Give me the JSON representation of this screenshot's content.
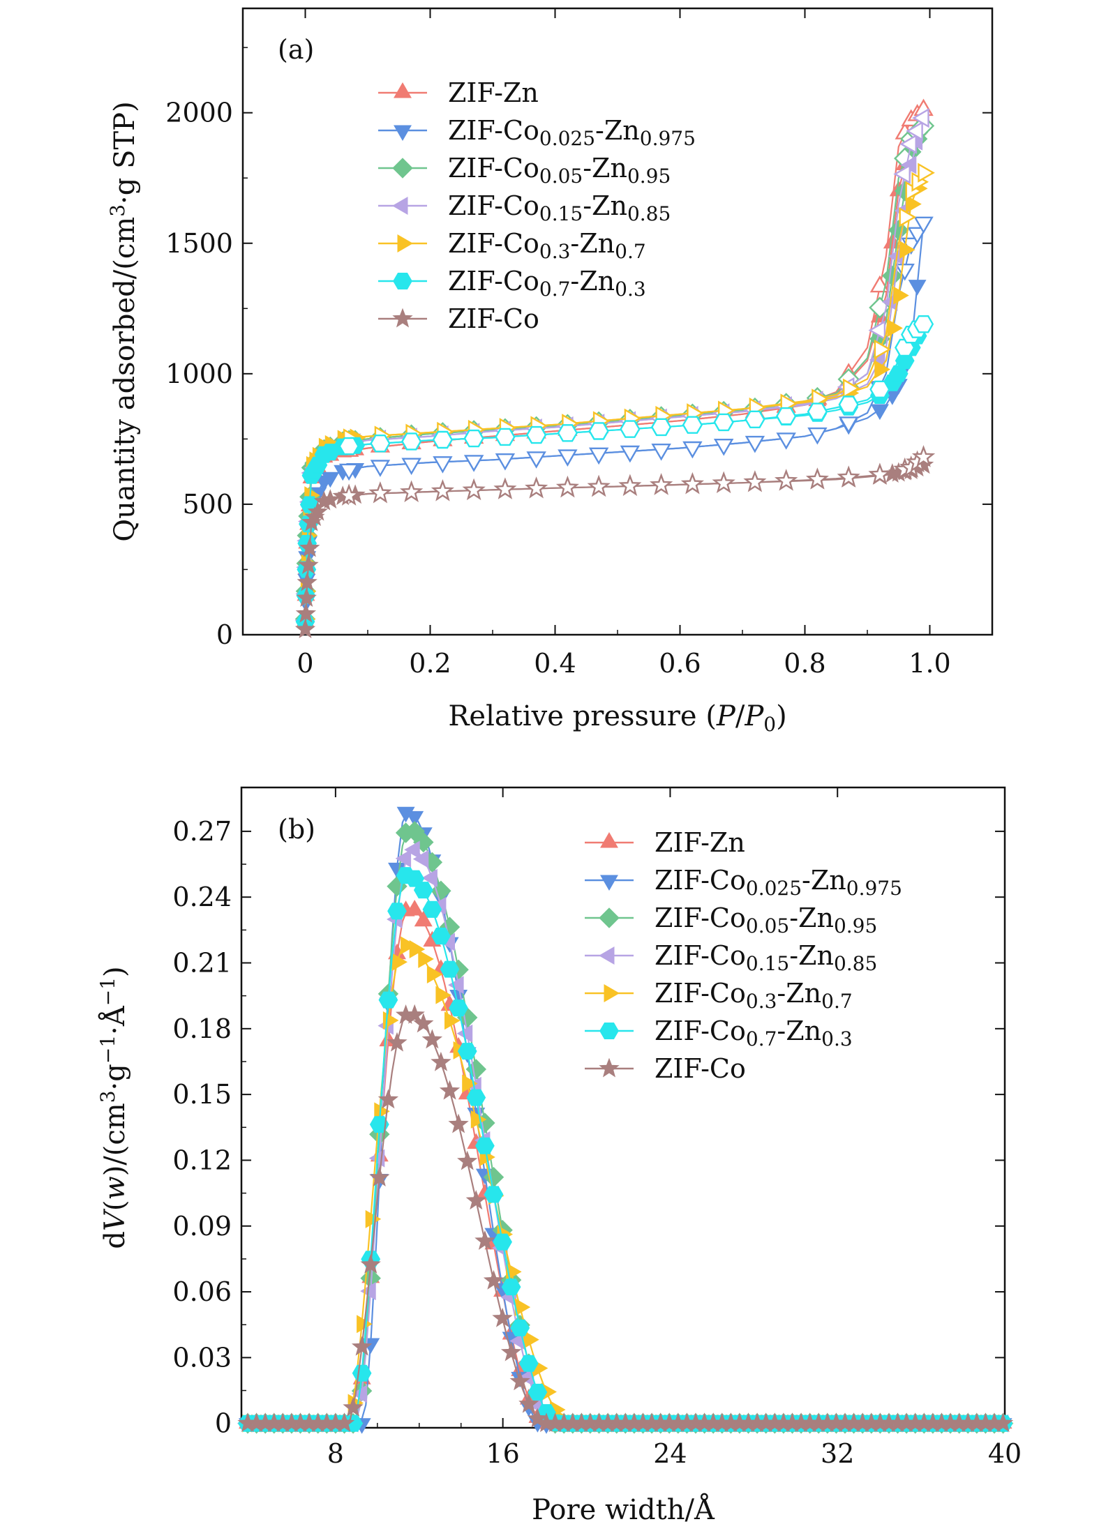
{
  "figure": {
    "panels": [
      "(a)",
      "(b)"
    ]
  },
  "series_names": [
    "ZIF-Zn",
    "ZIF-Co0.025-Zn0.975",
    "ZIF-Co0.05-Zn0.95",
    "ZIF-Co0.15-Zn0.85",
    "ZIF-Co0.3-Zn0.7",
    "ZIF-Co0.7-Zn0.3",
    "ZIF-Co"
  ],
  "series_legend": [
    {
      "base": "ZIF-Co",
      "s1": "",
      "mid": "",
      "s2": "",
      "plain": "ZIF-Zn"
    },
    {
      "base": "ZIF-Co",
      "s1": "0.025",
      "mid": "-Zn",
      "s2": "0.975",
      "plain": ""
    },
    {
      "base": "ZIF-Co",
      "s1": "0.05",
      "mid": "-Zn",
      "s2": "0.95",
      "plain": ""
    },
    {
      "base": "ZIF-Co",
      "s1": "0.15",
      "mid": "-Zn",
      "s2": "0.85",
      "plain": ""
    },
    {
      "base": "ZIF-Co",
      "s1": "0.3",
      "mid": "-Zn",
      "s2": "0.7",
      "plain": ""
    },
    {
      "base": "ZIF-Co",
      "s1": "0.7",
      "mid": "-Zn",
      "s2": "0.3",
      "plain": ""
    },
    {
      "base": "ZIF-Co",
      "s1": "",
      "mid": "",
      "s2": "",
      "plain": "ZIF-Co"
    }
  ],
  "colors": [
    "#f07b72",
    "#5b8fe0",
    "#6fc58e",
    "#b7a4e4",
    "#f9c225",
    "#27e6ec",
    "#a97f7e"
  ],
  "markers": [
    "triangle-up",
    "triangle-down",
    "diamond",
    "triangle-left",
    "triangle-right",
    "hexagon",
    "star"
  ],
  "chart_data": [
    {
      "type": "line",
      "panel": "(a)",
      "title": "",
      "xlabel": "Relative pressure (P/P0)",
      "xlabel_parts": {
        "pre": "Relative pressure (",
        "var1": "P",
        "slash": "/",
        "var2": "P",
        "sub": "0",
        "post": ")"
      },
      "ylabel": "Quantity adsorbed/(cm3·g STP)",
      "ylabel_parts": {
        "pre": "Quantity adsorbed/(cm",
        "sup": "3",
        "post": "·g STP)"
      },
      "xlim": [
        -0.1,
        1.1
      ],
      "ylim": [
        0,
        2400
      ],
      "xticks": [
        0,
        0.2,
        0.4,
        0.6,
        0.8,
        1.0
      ],
      "xtick_labels": [
        "0",
        "0.2",
        "0.4",
        "0.6",
        "0.8",
        "1.0"
      ],
      "yticks": [
        0,
        500,
        1000,
        1500,
        2000
      ],
      "ytick_labels": [
        "0",
        "500",
        "1000",
        "1500",
        "2000"
      ],
      "legend": "upper-left",
      "x": [
        0.0,
        0.003,
        0.01,
        0.03,
        0.06,
        0.1,
        0.2,
        0.3,
        0.4,
        0.5,
        0.6,
        0.7,
        0.8,
        0.85,
        0.9,
        0.93,
        0.95,
        0.97,
        0.99
      ],
      "series": [
        {
          "name": "ZIF-Zn",
          "adsorption": [
            50,
            350,
            600,
            680,
            700,
            715,
            740,
            760,
            780,
            800,
            820,
            845,
            880,
            920,
            1050,
            1300,
            1700,
            1900,
            1970
          ],
          "desorption": [
            700,
            715,
            740,
            760,
            780,
            800,
            820,
            845,
            885,
            930,
            1100,
            1450,
            1870,
            1970,
            2010
          ]
        },
        {
          "name": "ZIF-Co0.025-Zn0.975",
          "adsorption": [
            40,
            300,
            500,
            590,
            630,
            645,
            660,
            670,
            685,
            700,
            715,
            735,
            760,
            790,
            830,
            880,
            960,
            1100,
            1580
          ],
          "desorption": [
            630,
            645,
            660,
            670,
            685,
            700,
            715,
            735,
            760,
            790,
            850,
            1000,
            1300,
            1500,
            1580
          ]
        },
        {
          "name": "ZIF-Co0.05-Zn0.95",
          "adsorption": [
            60,
            380,
            640,
            710,
            740,
            750,
            770,
            785,
            800,
            820,
            840,
            860,
            890,
            915,
            1000,
            1200,
            1550,
            1850,
            1950
          ],
          "desorption": [
            740,
            750,
            770,
            785,
            800,
            820,
            840,
            860,
            895,
            925,
            1060,
            1350,
            1750,
            1900,
            1950
          ]
        },
        {
          "name": "ZIF-Co0.15-Zn0.85",
          "adsorption": [
            55,
            360,
            620,
            700,
            730,
            745,
            760,
            780,
            795,
            815,
            835,
            855,
            880,
            905,
            960,
            1100,
            1450,
            1800,
            1980
          ],
          "desorption": [
            730,
            745,
            760,
            780,
            795,
            815,
            835,
            855,
            885,
            915,
            1000,
            1250,
            1650,
            1880,
            1980
          ]
        },
        {
          "name": "ZIF-Co0.3-Zn0.7",
          "adsorption": [
            60,
            380,
            650,
            720,
            750,
            760,
            775,
            790,
            805,
            825,
            845,
            865,
            890,
            910,
            950,
            1050,
            1300,
            1650,
            1770
          ],
          "desorption": [
            750,
            760,
            775,
            790,
            805,
            825,
            845,
            865,
            895,
            920,
            980,
            1150,
            1500,
            1700,
            1770
          ]
        },
        {
          "name": "ZIF-Co0.7-Zn0.3",
          "adsorption": [
            50,
            350,
            610,
            690,
            720,
            730,
            745,
            755,
            770,
            785,
            800,
            820,
            840,
            860,
            890,
            930,
            1000,
            1100,
            1190
          ],
          "desorption": [
            720,
            730,
            745,
            755,
            770,
            785,
            800,
            820,
            845,
            870,
            900,
            960,
            1050,
            1150,
            1190
          ]
        },
        {
          "name": "ZIF-Co",
          "adsorption": [
            20,
            200,
            430,
            510,
            530,
            540,
            548,
            555,
            562,
            568,
            575,
            582,
            590,
            595,
            605,
            612,
            620,
            630,
            650
          ],
          "desorption": [
            530,
            540,
            548,
            555,
            562,
            568,
            575,
            582,
            592,
            598,
            608,
            615,
            625,
            640,
            680
          ]
        }
      ]
    },
    {
      "type": "line",
      "panel": "(b)",
      "title": "",
      "xlabel": "Pore width/Å",
      "ylabel": "dV(w)/(cm3·g-1·Å-1)",
      "ylabel_parts": {
        "pre": "d",
        "var": "V",
        "mid": "(",
        "var2": "w",
        "mid2": ")/(cm",
        "sup1": "3",
        "mid3": "·g",
        "sup2": "−1",
        "mid4": "·Å",
        "sup3": "−1",
        "post": ")"
      },
      "xlim": [
        3.5,
        40
      ],
      "ylim": [
        -0.002,
        0.29
      ],
      "xticks": [
        8,
        16,
        24,
        32,
        40
      ],
      "xtick_labels": [
        "8",
        "16",
        "24",
        "32",
        "40"
      ],
      "yticks": [
        0,
        0.03,
        0.06,
        0.09,
        0.12,
        0.15,
        0.18,
        0.21,
        0.24,
        0.27
      ],
      "ytick_labels": [
        "0",
        "0.03",
        "0.06",
        "0.09",
        "0.12",
        "0.15",
        "0.18",
        "0.21",
        "0.24",
        "0.27"
      ],
      "legend": "upper-right",
      "series": [
        {
          "name": "ZIF-Zn",
          "peak_x": 11.5,
          "peak_y": 0.235,
          "onset_x": 8.9,
          "end_x": 18.0
        },
        {
          "name": "ZIF-Co0.025-Zn0.975",
          "peak_x": 11.4,
          "peak_y": 0.279,
          "onset_x": 9.3,
          "end_x": 17.8
        },
        {
          "name": "ZIF-Co0.05-Zn0.95",
          "peak_x": 11.5,
          "peak_y": 0.271,
          "onset_x": 9.0,
          "end_x": 18.5
        },
        {
          "name": "ZIF-Co0.15-Zn0.85",
          "peak_x": 11.6,
          "peak_y": 0.262,
          "onset_x": 9.0,
          "end_x": 18.3
        },
        {
          "name": "ZIF-Co0.3-Zn0.7",
          "peak_x": 11.3,
          "peak_y": 0.218,
          "onset_x": 8.6,
          "end_x": 19.2
        },
        {
          "name": "ZIF-Co0.7-Zn0.3",
          "peak_x": 11.4,
          "peak_y": 0.25,
          "onset_x": 8.9,
          "end_x": 18.6
        },
        {
          "name": "ZIF-Co",
          "peak_x": 11.5,
          "peak_y": 0.187,
          "onset_x": 8.6,
          "end_x": 18.0
        }
      ]
    }
  ]
}
